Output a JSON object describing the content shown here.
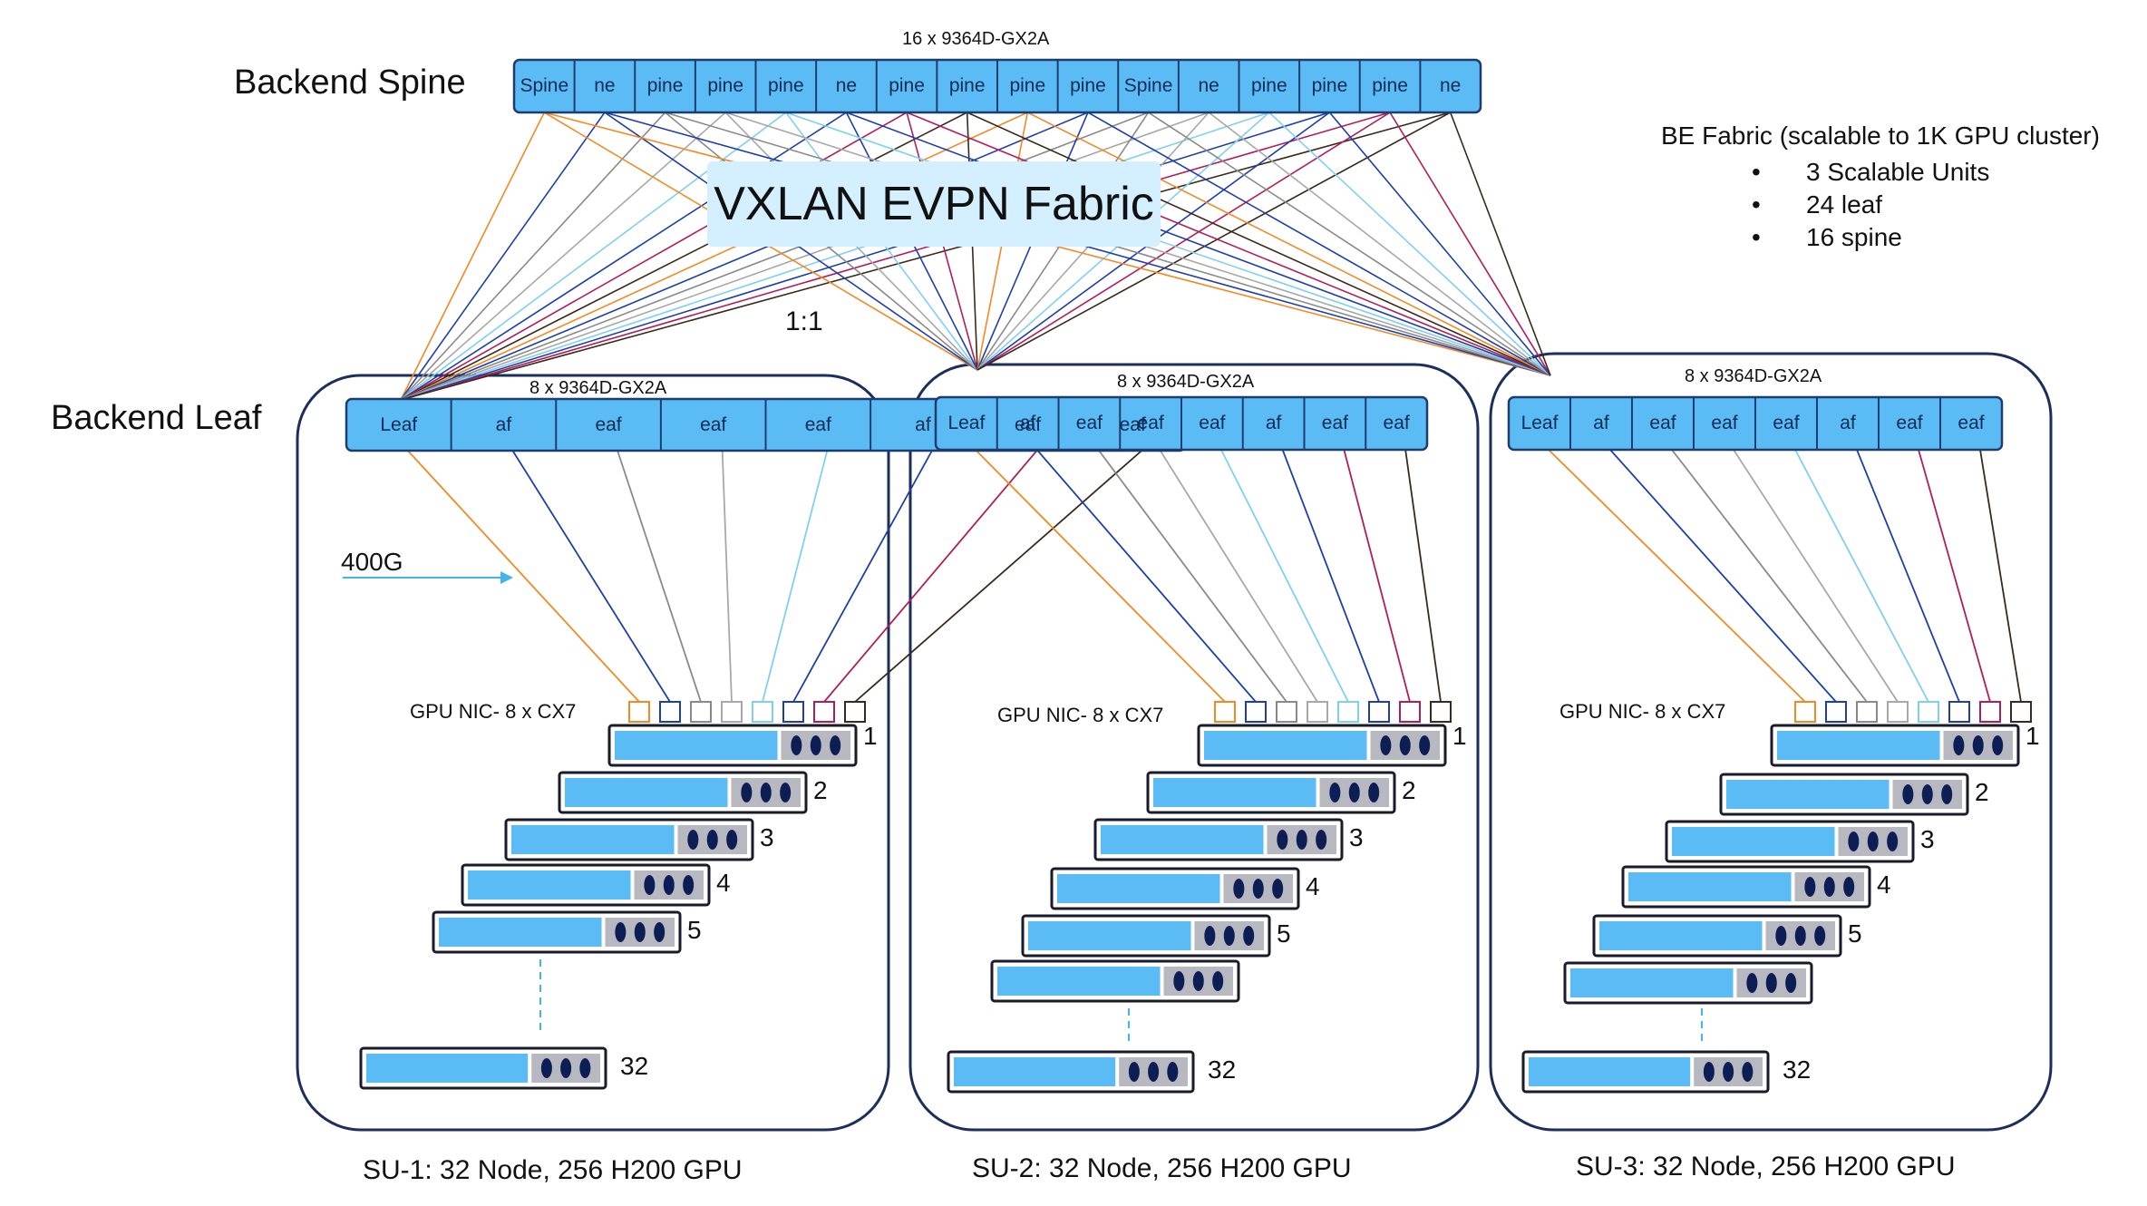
{
  "title_spine_count": "16 x 9364D-GX2A",
  "backend_spine_label": "Backend Spine",
  "backend_leaf_label": "Backend Leaf",
  "fabric_label": "VXLAN EVPN Fabric",
  "ratio_label": "1:1",
  "link_speed_label": "400G",
  "spine_tags": [
    "Spine",
    "ne",
    "pine",
    "pine",
    "pine",
    "ne",
    "pine",
    "pine",
    "pine",
    "pine",
    "Spine",
    "ne",
    "pine",
    "pine",
    "pine",
    "ne"
  ],
  "be_fabric": {
    "title": "BE Fabric (scalable to 1K GPU cluster)",
    "items": [
      "3 Scalable Units",
      "24 leaf",
      "16 spine"
    ]
  },
  "leaf_tags": [
    "Leaf",
    "af",
    "eaf",
    "eaf",
    "eaf",
    "af",
    "eaf",
    "eaf"
  ],
  "scalable_units": [
    {
      "leaf_count": "8 x 9364D-GX2A",
      "gpu_nic": "GPU NIC- 8 x CX7",
      "caption": "SU-1: 32 Node, 256 H200 GPU",
      "node_numbers": [
        "1",
        "2",
        "3",
        "4",
        "5",
        "32"
      ]
    },
    {
      "leaf_count": "8 x 9364D-GX2A",
      "gpu_nic": "GPU NIC- 8 x CX7",
      "caption": "SU-2: 32 Node, 256 H200 GPU",
      "node_numbers": [
        "1",
        "2",
        "3",
        "4",
        "5",
        "32"
      ]
    },
    {
      "leaf_count": "8 x 9364D-GX2A",
      "gpu_nic": "GPU NIC- 8 x CX7",
      "caption": "SU-3: 32 Node, 256 H200 GPU",
      "node_numbers": [
        "1",
        "2",
        "3",
        "4",
        "5",
        "32"
      ]
    }
  ],
  "link_colors": [
    "#f08a24",
    "#1f3fa8",
    "#8a8a8a",
    "#a8a8a8",
    "#7fd0f0",
    "#1f3fa8",
    "#b01e5a",
    "#3a2a1a"
  ],
  "colors": {
    "switch_fill": "#5bbcf5",
    "switch_border": "#1c3d6e",
    "node_gray": "#b8b8c0",
    "su_border": "#1c2e5c",
    "fabric_bg": "#d4efff"
  }
}
